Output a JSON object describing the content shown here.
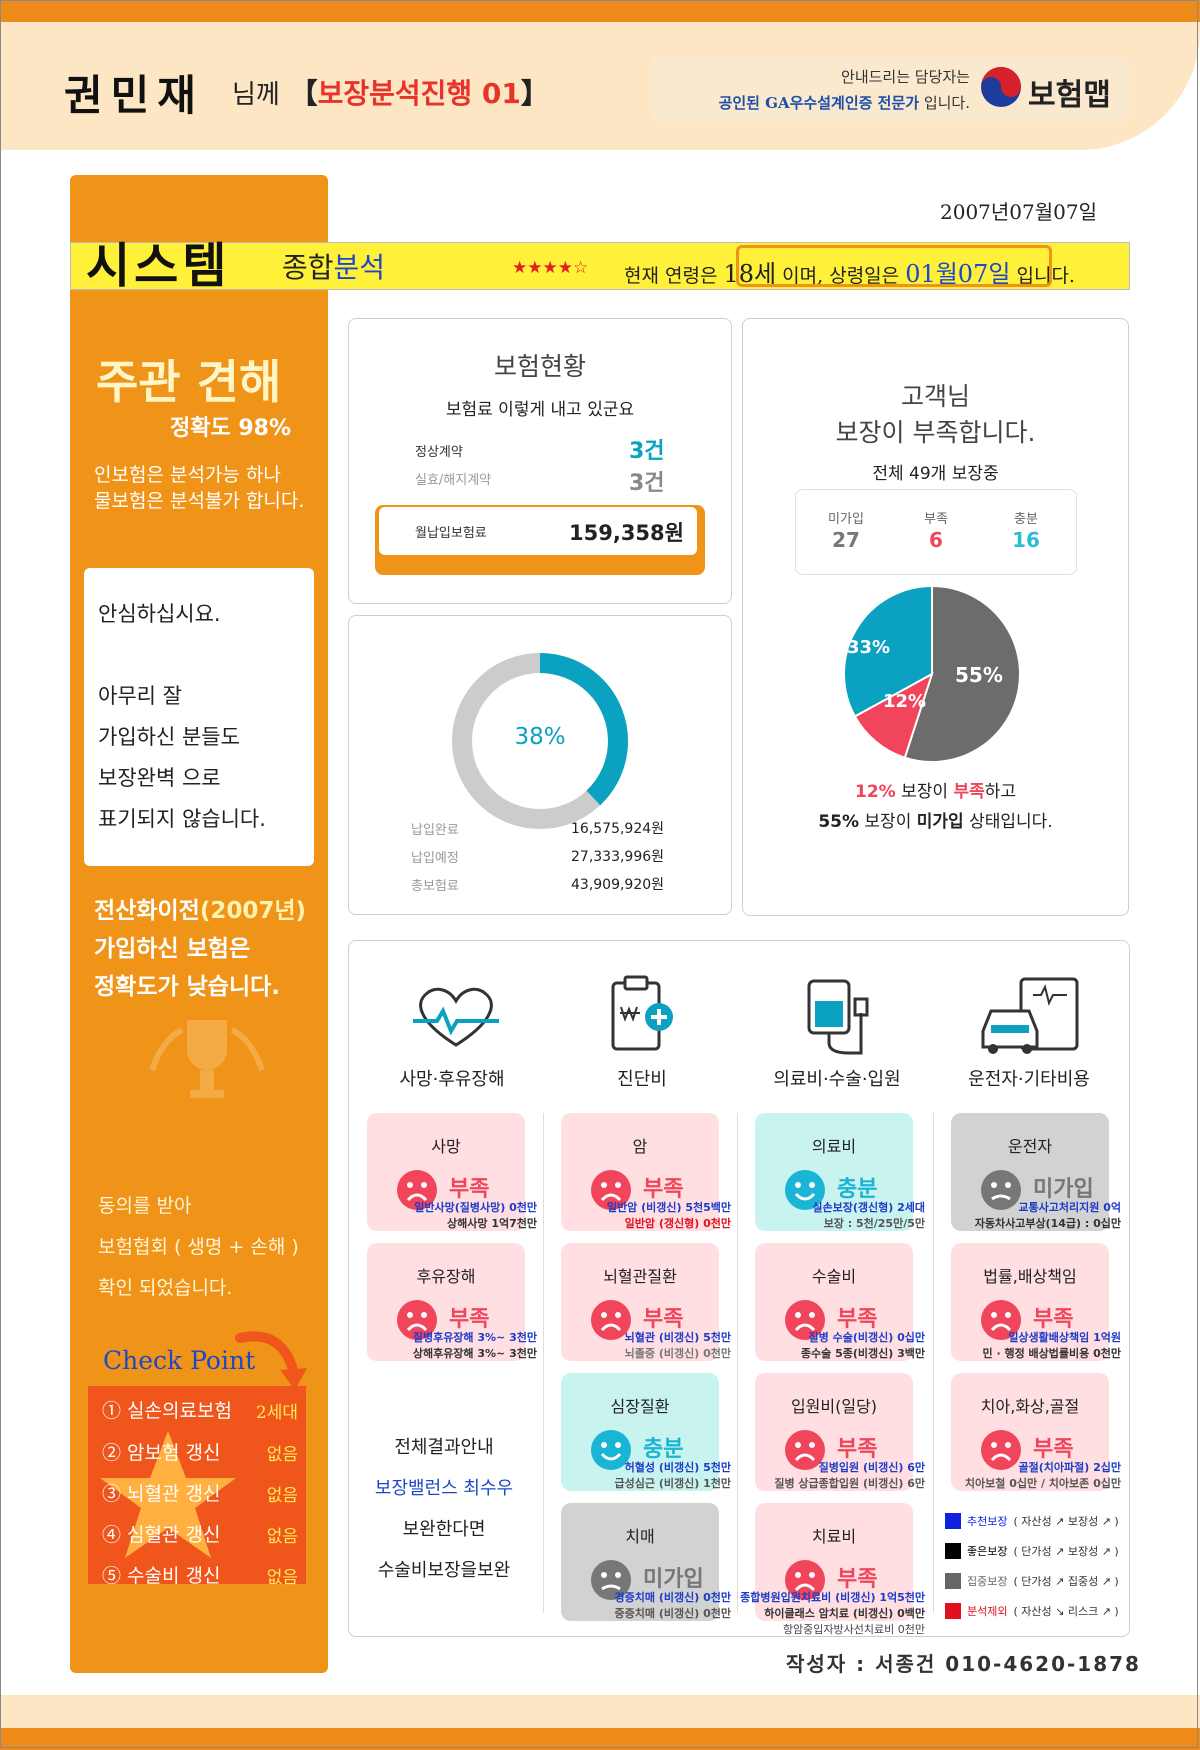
{
  "header": {
    "customer_name": "권민재",
    "honorific": "님께",
    "bracket_open": "【",
    "title_red": "보장분석",
    "title_rest": "진행 01",
    "bracket_close": "】",
    "contact_line1": "안내드리는 담당자는",
    "contact_line2_bold": "공인된 GA우수설계인증 전문가",
    "contact_line2_rest": " 입니다.",
    "logo_text": "보험맵"
  },
  "date": "2007년07월07일",
  "system_bar": {
    "title": "시스템",
    "subtitle_a": "종합",
    "subtitle_b": "분석",
    "stars": "★★★★☆",
    "age_prefix": "현재 연령은",
    "age_value": "18세",
    "age_mid": "이며, 상령일은",
    "age_date": "01월07일",
    "age_suffix": "입니다."
  },
  "left_panel": {
    "opinion_title": "주관 견해",
    "accuracy": "정확도 98%",
    "note_line1": "인보험은 분석가능 하나",
    "note_line2": "물보험은 분석불가 합니다.",
    "box_line1": "안심하십시요.",
    "box_line2": "아무리 잘",
    "box_line3": "가입하신 분들도",
    "box_line4": "보장완벽 으로",
    "box_line5": "표기되지 않습니다.",
    "pre_line1_a": "전산화이전",
    "pre_line1_b": "(2007년)",
    "pre_line2": "가입하신 보험은",
    "pre_line3": "정확도가 낮습니다.",
    "agree_line1": "동의를 받아",
    "agree_line2": "보험협회 ( 생명 + 손해 )",
    "agree_line3": "확인 되었습니다.",
    "checkpoint_title": "Check Point",
    "checkpoints": [
      {
        "label": "① 실손의료보험",
        "value": "2세대"
      },
      {
        "label": "② 암보험 갱신",
        "value": "없음"
      },
      {
        "label": "③ 뇌혈관 갱신",
        "value": "없음"
      },
      {
        "label": "④ 심혈관 갱신",
        "value": "없음"
      },
      {
        "label": "⑤ 수술비 갱신",
        "value": "없음"
      }
    ]
  },
  "insurance_status": {
    "title": "보험현황",
    "subtitle": "보험료 이렇게 내고 있군요",
    "normal_label": "정상계약",
    "normal_value": "3건",
    "lapsed_label": "실효/해지계약",
    "lapsed_value": "3건",
    "monthly_label": "월납입보험료",
    "monthly_value": "159,358원"
  },
  "payment": {
    "percent_label": "38%",
    "percent": 38,
    "paid_label": "납입완료",
    "paid_value": "16,575,924원",
    "due_label": "납입예정",
    "due_value": "27,333,996원",
    "total_label": "총보험료",
    "total_value": "43,909,920원",
    "color_fill": "#0aa2c0",
    "color_track": "#cccccc"
  },
  "coverage_summary": {
    "title_line1": "고객님",
    "title_line2": "보장이 부족합니다.",
    "total": "전체 49개 보장중",
    "not_joined_label": "미가입",
    "not_joined_value": "27",
    "short_label": "부족",
    "short_value": "6",
    "enough_label": "충분",
    "enough_value": "16",
    "pie_label_enough": "33%",
    "pie_label_short": "12%",
    "pie_label_none": "55%",
    "note1_pct": "12%",
    "note1_mid": " 보장이 ",
    "note1_word": "부족",
    "note1_end": "하고",
    "note2_pct": "55%",
    "note2_mid": " 보장이 ",
    "note2_word": "미가입",
    "note2_end": " 상태입니다."
  },
  "chart_data": {
    "type": "pie",
    "categories": [
      "충분",
      "부족",
      "미가입"
    ],
    "values": [
      33,
      12,
      55
    ],
    "colors": [
      "#0aa2c0",
      "#f0455a",
      "#6c6c6c"
    ]
  },
  "categories": [
    {
      "label": "사망·후유장해",
      "icon": "heart-pulse-icon"
    },
    {
      "label": "진단비",
      "icon": "clipboard-medical-icon"
    },
    {
      "label": "의료비·수술·입원",
      "icon": "iv-bag-icon"
    },
    {
      "label": "운전자·기타비용",
      "icon": "car-document-icon"
    }
  ],
  "tiles": {
    "death": {
      "title": "사망",
      "status": "부족",
      "line1": "일반사망(질병사망) 0천만",
      "line2": "상해사망 1억7천만"
    },
    "disability": {
      "title": "후유장해",
      "status": "부족",
      "line1": "질병후유장해 3%~ 3천만",
      "line2": "상해후유장해 3%~ 3천만"
    },
    "cancer": {
      "title": "암",
      "status": "부족",
      "line1": "일반암 (비갱신) 5천5백만",
      "line2": "일반암 (갱신형) 0천만"
    },
    "brain": {
      "title": "뇌혈관질환",
      "status": "부족",
      "line1": "뇌혈관 (비갱신) 5천만",
      "line2": "뇌졸중 (비갱신) 0천만"
    },
    "heart": {
      "title": "심장질환",
      "status": "충분",
      "line1": "허혈성 (비갱신) 5천만",
      "line2": "급성심근 (비갱신) 1천만"
    },
    "dementia": {
      "title": "치매",
      "status": "미가입",
      "line1": "경증치매 (비갱신) 0천만",
      "line2": "중증치매 (비갱신) 0천만"
    },
    "medical": {
      "title": "의료비",
      "status": "충분",
      "line1": "실손보장(갱신형) 2세대",
      "line2": "보장 : 5천/25만/5만"
    },
    "surgery": {
      "title": "수술비",
      "status": "부족",
      "line1": "질병 수술(비갱신) 0십만",
      "line2": "종수술 5종(비갱신) 3백만"
    },
    "hospital": {
      "title": "입원비(일당)",
      "status": "부족",
      "line1": "질병입원 (비갱신) 6만",
      "line2": "질병 상급종합입원 (비갱신) 6만"
    },
    "treatment": {
      "title": "치료비",
      "status": "부족",
      "line1": "종합병원입원치료비 (비갱신) 1억5천만",
      "line2": "하이클래스 암치료 (비갱신) 0백만",
      "line3": "항암중입자방사선치료비 0천만"
    },
    "driver": {
      "title": "운전자",
      "status": "미가입",
      "line1": "교통사고처리지원 0억",
      "line2": "자동차사고부상(14급) : 0십만"
    },
    "liability": {
      "title": "법률,배상책임",
      "status": "부족",
      "line1": "일상생활배상책임 1억원",
      "line2": "민 · 행정 배상법률비용 0천만"
    },
    "dental": {
      "title": "치아,화상,골절",
      "status": "부족",
      "line1": "골절(치아파절) 2십만",
      "line2": "치아보철 0십만 / 치아보존 0십만"
    }
  },
  "result_note": {
    "line1": "전체결과안내",
    "line2": "보장밸런스 최수우",
    "line3": "보완한다면",
    "line4": "수술비보장을보완"
  },
  "legend": [
    {
      "label": "추천보장",
      "desc": "( 자산성 ↗ 보장성 ↗ )",
      "color": "#1020e0"
    },
    {
      "label": "좋은보장",
      "desc": "( 단가성 ↗ 보장성 ↗ )",
      "color": "#000000"
    },
    {
      "label": "집중보장",
      "desc": "( 단가성 ↗ 집중성 ↗ )",
      "color": "#666666"
    },
    {
      "label": "분석제외",
      "desc": "( 자산성 ↘ 리스크 ↗ )",
      "color": "#e01020"
    }
  ],
  "author": "작성자 : 서종건 010-4620-1878"
}
